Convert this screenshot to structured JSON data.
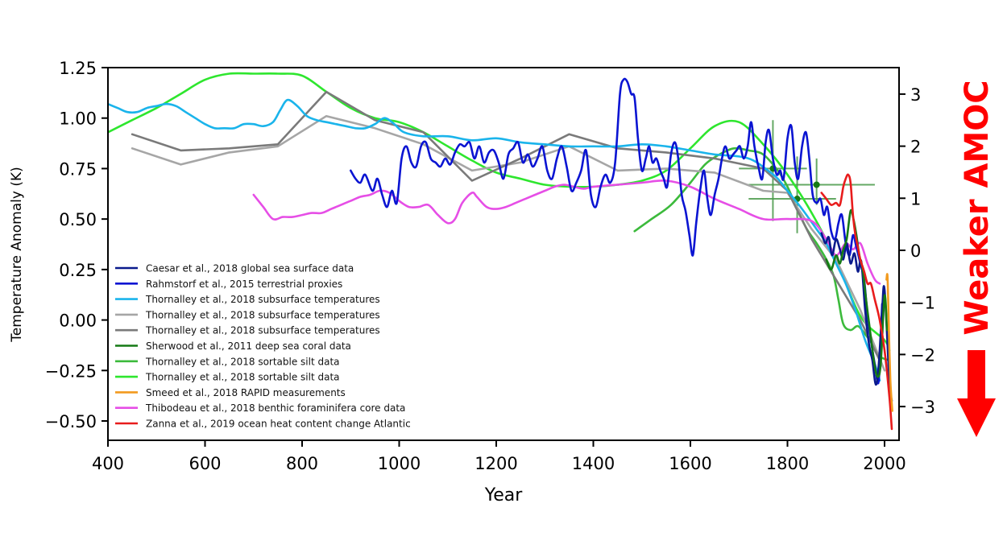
{
  "chart_data": {
    "type": "line",
    "title": "",
    "xlabel": "Year",
    "ylabel": "Temperature Anomaly (K)",
    "xlim": [
      400,
      2025
    ],
    "ylim": [
      -0.6,
      1.25
    ],
    "x_ticks": [
      400,
      600,
      800,
      1000,
      1200,
      1400,
      1600,
      1800,
      2000
    ],
    "x_tick_labels": [
      "400",
      "600",
      "800",
      "1000",
      "1200",
      "1400",
      "1600",
      "1800",
      "2000"
    ],
    "y_ticks": [
      1.25,
      1.0,
      0.75,
      0.5,
      0.25,
      0.0,
      -0.25,
      -0.5
    ],
    "y_tick_labels": [
      "1.25",
      "1.00",
      "0.75",
      "0.50",
      "0.25",
      "0.00",
      "−0.25",
      "−0.50"
    ],
    "y2_lim": [
      -3.6,
      3.5
    ],
    "y2_ticks": [
      3,
      2,
      1,
      0,
      -1,
      -2,
      -3
    ],
    "y2_tick_labels": [
      "3",
      "2",
      "1",
      "0",
      "−1",
      "−2",
      "−3"
    ],
    "grid": false,
    "legend_position": "lower-left",
    "annotation": {
      "text": "Weaker AMOC",
      "color": "#ff0000",
      "arrow": "down"
    },
    "series": [
      {
        "name": "Caesar et al., 2018 global sea surface data",
        "color": "#0a1a8c",
        "x": [
          1870,
          1878,
          1885,
          1892,
          1900,
          1908,
          1915,
          1922,
          1930,
          1938,
          1945,
          1952,
          1960,
          1968,
          1975,
          1982,
          1988,
          1995,
          2000,
          2010,
          2015
        ],
        "y": [
          0.43,
          0.38,
          0.41,
          0.32,
          0.4,
          0.35,
          0.3,
          0.38,
          0.28,
          0.33,
          0.24,
          0.29,
          0.05,
          -0.12,
          -0.2,
          -0.32,
          -0.22,
          0.05,
          0.15,
          -0.3,
          -0.4
        ]
      },
      {
        "name": "Rahmstorf et al., 2015 terrestrial proxies",
        "color": "#0a14d2",
        "x": [
          900,
          910,
          920,
          930,
          945,
          955,
          965,
          975,
          985,
          995,
          1005,
          1015,
          1025,
          1035,
          1045,
          1055,
          1065,
          1075,
          1085,
          1095,
          1105,
          1115,
          1125,
          1135,
          1145,
          1155,
          1165,
          1175,
          1185,
          1195,
          1205,
          1215,
          1225,
          1235,
          1245,
          1255,
          1265,
          1275,
          1285,
          1295,
          1305,
          1315,
          1325,
          1335,
          1345,
          1355,
          1365,
          1375,
          1385,
          1395,
          1405,
          1415,
          1425,
          1435,
          1445,
          1455,
          1462,
          1470,
          1478,
          1485,
          1492,
          1500,
          1508,
          1515,
          1522,
          1530,
          1538,
          1545,
          1552,
          1560,
          1568,
          1575,
          1582,
          1590,
          1598,
          1605,
          1612,
          1620,
          1628,
          1635,
          1642,
          1650,
          1658,
          1665,
          1672,
          1680,
          1688,
          1695,
          1702,
          1710,
          1718,
          1725,
          1732,
          1740,
          1748,
          1755,
          1762,
          1770,
          1778,
          1785,
          1792,
          1800,
          1808,
          1815,
          1822,
          1830,
          1838,
          1845,
          1852,
          1860,
          1868,
          1875,
          1882,
          1890,
          1898,
          1905,
          1912,
          1920,
          1928,
          1935,
          1942,
          1950,
          1958,
          1965,
          1972,
          1980,
          1988,
          1995
        ],
        "y": [
          0.74,
          0.7,
          0.68,
          0.72,
          0.64,
          0.7,
          0.62,
          0.56,
          0.64,
          0.58,
          0.8,
          0.86,
          0.78,
          0.76,
          0.86,
          0.88,
          0.8,
          0.78,
          0.76,
          0.8,
          0.77,
          0.83,
          0.87,
          0.86,
          0.88,
          0.8,
          0.86,
          0.78,
          0.83,
          0.84,
          0.78,
          0.7,
          0.82,
          0.85,
          0.88,
          0.78,
          0.82,
          0.76,
          0.8,
          0.86,
          0.74,
          0.7,
          0.8,
          0.86,
          0.76,
          0.64,
          0.68,
          0.74,
          0.84,
          0.62,
          0.56,
          0.66,
          0.72,
          0.68,
          0.78,
          1.12,
          1.19,
          1.18,
          1.12,
          1.1,
          0.9,
          0.74,
          0.8,
          0.86,
          0.78,
          0.8,
          0.74,
          0.7,
          0.66,
          0.82,
          0.88,
          0.8,
          0.62,
          0.54,
          0.42,
          0.32,
          0.48,
          0.64,
          0.74,
          0.6,
          0.52,
          0.62,
          0.7,
          0.8,
          0.86,
          0.8,
          0.82,
          0.84,
          0.86,
          0.8,
          0.86,
          0.98,
          0.86,
          0.76,
          0.7,
          0.88,
          0.94,
          0.8,
          0.72,
          0.74,
          0.7,
          0.9,
          0.96,
          0.78,
          0.7,
          0.86,
          0.93,
          0.8,
          0.62,
          0.58,
          0.6,
          0.52,
          0.56,
          0.44,
          0.4,
          0.48,
          0.52,
          0.38,
          0.32,
          0.42,
          0.36,
          0.28,
          0.2,
          0.02,
          -0.1,
          -0.22,
          -0.3,
          0.08
        ]
      },
      {
        "name": "Thornalley et al., 2018 subsurface temperatures",
        "color": "#1ab4eb",
        "x": [
          400,
          420,
          440,
          460,
          480,
          500,
          520,
          540,
          560,
          580,
          600,
          620,
          640,
          660,
          680,
          700,
          720,
          740,
          755,
          770,
          790,
          810,
          830,
          850,
          870,
          890,
          910,
          930,
          950,
          970,
          990,
          1010,
          1050,
          1100,
          1150,
          1200,
          1250,
          1300,
          1350,
          1400,
          1450,
          1500,
          1550,
          1600,
          1650,
          1700,
          1730,
          1760,
          1780,
          1800,
          1830,
          1860,
          1880,
          1900,
          1920,
          1940,
          1960,
          1980,
          1990
        ],
        "y": [
          1.07,
          1.05,
          1.03,
          1.03,
          1.05,
          1.06,
          1.07,
          1.06,
          1.03,
          1.0,
          0.97,
          0.95,
          0.95,
          0.95,
          0.97,
          0.97,
          0.96,
          0.98,
          1.04,
          1.09,
          1.06,
          1.01,
          0.99,
          0.98,
          0.97,
          0.96,
          0.95,
          0.95,
          0.97,
          1.0,
          0.97,
          0.93,
          0.91,
          0.91,
          0.89,
          0.9,
          0.88,
          0.87,
          0.86,
          0.86,
          0.86,
          0.87,
          0.86,
          0.84,
          0.82,
          0.81,
          0.79,
          0.74,
          0.7,
          0.64,
          0.55,
          0.45,
          0.38,
          0.28,
          0.18,
          0.05,
          -0.1,
          -0.22,
          -0.3
        ]
      },
      {
        "name": "Thornalley et al., 2018 subsurface temperatures",
        "color": "#a6a6a6",
        "x": [
          450,
          550,
          650,
          750,
          850,
          950,
          1050,
          1150,
          1250,
          1350,
          1450,
          1550,
          1650,
          1750,
          1800,
          1850,
          1900,
          1950,
          1975,
          2000
        ],
        "y": [
          0.85,
          0.77,
          0.83,
          0.86,
          1.01,
          0.95,
          0.87,
          0.74,
          0.78,
          0.86,
          0.74,
          0.75,
          0.73,
          0.64,
          0.63,
          0.45,
          0.3,
          0.05,
          -0.1,
          -0.25
        ]
      },
      {
        "name": "Thornalley et al., 2018 subsurface temperatures",
        "color": "#7a7a7a",
        "x": [
          450,
          550,
          650,
          750,
          850,
          950,
          1050,
          1150,
          1250,
          1350,
          1450,
          1550,
          1650,
          1750,
          1800,
          1850,
          1900,
          1950,
          1990
        ],
        "y": [
          0.92,
          0.84,
          0.85,
          0.87,
          1.13,
          0.99,
          0.93,
          0.69,
          0.8,
          0.92,
          0.85,
          0.83,
          0.8,
          0.75,
          0.64,
          0.4,
          0.2,
          0.0,
          -0.2
        ]
      },
      {
        "name": "Sherwood et al., 2011 deep sea coral data",
        "color": "#157a15",
        "x": [
          1880,
          1890,
          1900,
          1908,
          1915,
          1922,
          1930,
          1936,
          1942,
          1948,
          1955,
          1962,
          1970,
          1978,
          1985,
          1992,
          2000,
          2005
        ],
        "y": [
          0.3,
          0.25,
          0.32,
          0.28,
          0.35,
          0.4,
          0.54,
          0.5,
          0.42,
          0.32,
          0.25,
          0.1,
          -0.05,
          -0.2,
          -0.28,
          -0.22,
          0.12,
          -0.05
        ]
      },
      {
        "name": "Thornalley et al., 2018 sortable silt data",
        "color": "#3cba3c",
        "x": [
          1485,
          1520,
          1560,
          1600,
          1630,
          1660,
          1690,
          1720,
          1750,
          1780,
          1800,
          1820,
          1840,
          1860,
          1880,
          1895,
          1905,
          1915,
          1930,
          1945,
          1960,
          1975,
          1990,
          2010
        ],
        "y": [
          0.44,
          0.5,
          0.57,
          0.68,
          0.77,
          0.82,
          0.85,
          0.84,
          0.82,
          0.74,
          0.66,
          0.55,
          0.45,
          0.38,
          0.3,
          0.22,
          0.1,
          -0.02,
          -0.05,
          -0.03,
          -0.07,
          -0.12,
          -0.18,
          -0.2
        ]
      },
      {
        "name": "Thornalley et al., 2018 sortable silt data",
        "color": "#2ee62e",
        "x": [
          400,
          450,
          500,
          550,
          600,
          650,
          700,
          750,
          800,
          850,
          900,
          950,
          1000,
          1050,
          1100,
          1150,
          1200,
          1250,
          1300,
          1350,
          1400,
          1450,
          1500,
          1550,
          1600,
          1650,
          1700,
          1750,
          1800,
          1850,
          1900,
          1950,
          2000,
          2010
        ],
        "y": [
          0.93,
          0.99,
          1.05,
          1.12,
          1.19,
          1.22,
          1.22,
          1.22,
          1.21,
          1.13,
          1.05,
          1.0,
          0.98,
          0.93,
          0.86,
          0.79,
          0.73,
          0.7,
          0.67,
          0.66,
          0.66,
          0.67,
          0.69,
          0.74,
          0.85,
          0.96,
          0.98,
          0.87,
          0.72,
          0.53,
          0.3,
          0.02,
          -0.1,
          -0.15
        ]
      },
      {
        "name": "Smeed et al., 2018 RAPID measurements",
        "color": "#f29a1e",
        "x": [
          2004,
          2006,
          2008,
          2010,
          2012,
          2014,
          2016
        ],
        "y": [
          0.2,
          0.22,
          0.05,
          -0.15,
          -0.3,
          -0.38,
          -0.45
        ]
      },
      {
        "name": "Thibodeau et al., 2018 benthic foraminifera core data",
        "color": "#e64ee6",
        "x": [
          700,
          720,
          740,
          760,
          780,
          800,
          820,
          840,
          860,
          880,
          900,
          920,
          940,
          960,
          980,
          1000,
          1020,
          1040,
          1060,
          1080,
          1100,
          1115,
          1130,
          1150,
          1160,
          1180,
          1200,
          1220,
          1240,
          1260,
          1280,
          1300,
          1320,
          1340,
          1360,
          1380,
          1400,
          1450,
          1500,
          1550,
          1600,
          1650,
          1700,
          1750,
          1800,
          1850,
          1880,
          1900,
          1920,
          1935,
          1950,
          1965,
          1980,
          1990
        ],
        "y": [
          0.62,
          0.56,
          0.5,
          0.51,
          0.51,
          0.52,
          0.53,
          0.53,
          0.55,
          0.57,
          0.59,
          0.61,
          0.62,
          0.64,
          0.63,
          0.59,
          0.56,
          0.56,
          0.57,
          0.52,
          0.48,
          0.5,
          0.58,
          0.63,
          0.61,
          0.56,
          0.55,
          0.56,
          0.58,
          0.6,
          0.62,
          0.64,
          0.66,
          0.67,
          0.66,
          0.65,
          0.66,
          0.67,
          0.68,
          0.69,
          0.66,
          0.6,
          0.55,
          0.5,
          0.5,
          0.49,
          0.4,
          0.32,
          0.38,
          0.35,
          0.38,
          0.28,
          0.2,
          0.18
        ]
      },
      {
        "name": "Zanna et al., 2019 ocean heat content change Atlantic",
        "color": "#e81c1c",
        "x": [
          1870,
          1880,
          1890,
          1900,
          1908,
          1915,
          1920,
          1925,
          1930,
          1935,
          1940,
          1945,
          1950,
          1958,
          1965,
          1972,
          1980,
          1990,
          2000,
          2010,
          2015
        ],
        "y": [
          0.63,
          0.6,
          0.57,
          0.58,
          0.57,
          0.66,
          0.7,
          0.72,
          0.68,
          0.52,
          0.42,
          0.36,
          0.3,
          0.24,
          0.18,
          0.18,
          0.1,
          0.0,
          -0.15,
          -0.38,
          -0.54
        ]
      }
    ],
    "error_bars": {
      "color": "#4a9a4a",
      "points": [
        {
          "x": 1770,
          "y": 0.75,
          "xerr": [
            1700,
            1840
          ],
          "yerr": [
            0.49,
            0.99
          ]
        },
        {
          "x": 1820,
          "y": 0.6,
          "xerr": [
            1720,
            1900
          ],
          "yerr": [
            0.43,
            0.81
          ]
        },
        {
          "x": 1860,
          "y": 0.67,
          "xerr": [
            1720,
            1980
          ],
          "yerr": [
            0.57,
            0.8
          ]
        }
      ]
    }
  }
}
